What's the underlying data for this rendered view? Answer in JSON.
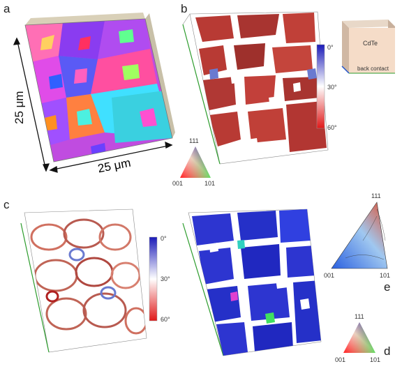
{
  "panels": {
    "a": {
      "letter": "a",
      "dim_x": "25 μm",
      "dim_y": "25 μm"
    },
    "b": {
      "letter": "b",
      "scale": {
        "top": "0°",
        "mid": "30°",
        "bottom": "60°"
      },
      "inset": {
        "material": "CdTe",
        "contact": "back contact"
      },
      "ipf": {
        "top": "111",
        "left": "001",
        "right": "101"
      }
    },
    "c": {
      "letter": "c",
      "scale": {
        "top": "0°",
        "mid": "30°",
        "bottom": "60°"
      }
    },
    "d": {
      "letter": "d",
      "ipf": {
        "top": "111",
        "left": "001",
        "right": "101"
      }
    },
    "e": {
      "letter": "e",
      "ipf": {
        "top": "111",
        "left": "001",
        "right": "101"
      }
    }
  },
  "colors": {
    "grain_palette": [
      "#c04ce0",
      "#8a3cf0",
      "#ff4fa0",
      "#3ad0e0",
      "#5a5af5",
      "#e04ce8",
      "#ff8040",
      "#40e0ff",
      "#a050ff",
      "#ff60c0"
    ],
    "boundary_red": "#b83a34",
    "boundary_blue": "#2d35d0"
  }
}
